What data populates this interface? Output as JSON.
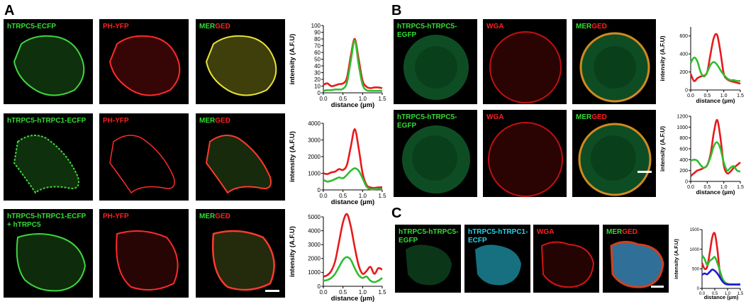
{
  "panels": {
    "A": {
      "letter": "A",
      "rows": [
        {
          "labels": {
            "green": "hTRPC5-ECFP",
            "red": "PH-YFP",
            "merged_a": "MER",
            "merged_b": "GED"
          },
          "chart": {
            "ylabel": "intensity (A.F.U)",
            "xlabel": "distance (µm)",
            "yticks": [
              "0",
              "10",
              "20",
              "30",
              "40",
              "50",
              "60",
              "70",
              "80",
              "90",
              "100"
            ],
            "xticks": [
              "0.0",
              "0.5",
              "1.0",
              "1.5"
            ]
          }
        },
        {
          "labels": {
            "green": "hTRPC5-hTRPC1-ECFP",
            "red": "PH-YFP",
            "merged_a": "MER",
            "merged_b": "GED"
          },
          "chart": {
            "ylabel": "intensity (A.F.U)",
            "xlabel": "distance (µm)",
            "yticks": [
              "0",
              "1000",
              "2000",
              "3000",
              "4000"
            ],
            "xticks": [
              "0.0",
              "0.5",
              "1.0",
              "1.5"
            ]
          }
        },
        {
          "labels": {
            "green": "hTRPC5-hTRPC1-ECFP\n+ hTRPC5",
            "red": "PH-YFP",
            "merged_a": "MER",
            "merged_b": "GED"
          },
          "chart": {
            "ylabel": "intensity (A.F.U)",
            "xlabel": "distance (µm)",
            "yticks": [
              "0",
              "1000",
              "2000",
              "3000",
              "4000",
              "5000"
            ],
            "xticks": [
              "0.0",
              "0.5",
              "1.0",
              "1.5"
            ]
          }
        }
      ]
    },
    "B": {
      "letter": "B",
      "rows": [
        {
          "labels": {
            "green": "hTRPC5-hTRPC5-\nEGFP",
            "red": "WGA",
            "merged_a": "MER",
            "merged_b": "GED"
          },
          "chart": {
            "ylabel": "intensity (A.F.U)",
            "xlabel": "distance (µm)",
            "yticks": [
              "0",
              "200",
              "400",
              "600"
            ],
            "xticks": [
              "0.0",
              "0.5",
              "1.0",
              "1.5"
            ]
          }
        },
        {
          "labels": {
            "green": "hTRPC5-hTRPC5-\nEGFP",
            "red": "WGA",
            "merged_a": "MER",
            "merged_b": "GED"
          },
          "chart": {
            "ylabel": "intensity (A.F.U)",
            "xlabel": "distance (µm)",
            "yticks": [
              "0",
              "200",
              "400",
              "600",
              "800",
              "1000",
              "1200"
            ],
            "xticks": [
              "0.0",
              "0.5",
              "1.0",
              "1.5"
            ]
          }
        }
      ]
    },
    "C": {
      "letter": "C",
      "labels": {
        "green": "hTRPC5-hTRPC5-\nEGFP",
        "cyan": "hTRPC5-hTRPC1-\nECFP",
        "red": "WGA",
        "merged_a": "MER",
        "merged_b": "GED"
      },
      "chart": {
        "ylabel": "intensity (A.F.U)",
        "xlabel": "distance (µm)",
        "yticks": [
          "0",
          "500",
          "1000",
          "1500"
        ],
        "xticks": [
          "0.0",
          "0.5",
          "1.0",
          "1.5"
        ]
      }
    }
  },
  "chart_data": [
    {
      "type": "line",
      "panel": "A-1",
      "ylim": [
        0,
        100
      ],
      "xlim": [
        0,
        1.5
      ],
      "x": [
        0,
        0.1,
        0.2,
        0.3,
        0.4,
        0.5,
        0.6,
        0.7,
        0.8,
        0.9,
        1.0,
        1.1,
        1.2,
        1.3,
        1.4,
        1.5
      ],
      "series": [
        {
          "color": "#e8191c",
          "values": [
            12,
            14,
            10,
            11,
            13,
            14,
            22,
            55,
            80,
            50,
            18,
            9,
            7,
            8,
            8,
            7
          ]
        },
        {
          "color": "#2ebd2e",
          "values": [
            3,
            4,
            4,
            5,
            5,
            6,
            15,
            48,
            78,
            42,
            12,
            4,
            3,
            3,
            3,
            3
          ]
        }
      ]
    },
    {
      "type": "line",
      "panel": "A-2",
      "ylim": [
        0,
        4000
      ],
      "xlim": [
        0,
        1.5
      ],
      "x": [
        0,
        0.1,
        0.2,
        0.3,
        0.4,
        0.5,
        0.6,
        0.7,
        0.8,
        0.9,
        1.0,
        1.1,
        1.2,
        1.3,
        1.4,
        1.5
      ],
      "series": [
        {
          "color": "#e8191c",
          "values": [
            1000,
            950,
            1050,
            1100,
            1250,
            1200,
            1500,
            2600,
            3650,
            2500,
            1000,
            300,
            150,
            120,
            150,
            160
          ]
        },
        {
          "color": "#2ebd2e",
          "values": [
            600,
            500,
            550,
            650,
            750,
            700,
            900,
            1150,
            1300,
            1150,
            700,
            200,
            50,
            50,
            60,
            50
          ]
        }
      ]
    },
    {
      "type": "line",
      "panel": "A-3",
      "ylim": [
        0,
        5000
      ],
      "xlim": [
        0,
        1.5
      ],
      "x": [
        0,
        0.1,
        0.2,
        0.3,
        0.4,
        0.5,
        0.6,
        0.7,
        0.8,
        0.9,
        1.0,
        1.1,
        1.2,
        1.3,
        1.4,
        1.5
      ],
      "series": [
        {
          "color": "#e8191c",
          "values": [
            700,
            800,
            1100,
            1800,
            3200,
            4600,
            5200,
            4300,
            2800,
            1500,
            900,
            1100,
            1400,
            900,
            1300,
            1200
          ]
        },
        {
          "color": "#2ebd2e",
          "values": [
            400,
            450,
            600,
            900,
            1400,
            1900,
            2100,
            1900,
            1300,
            800,
            600,
            700,
            400,
            300,
            400,
            600
          ]
        }
      ]
    },
    {
      "type": "line",
      "panel": "B-1",
      "ylim": [
        0,
        700
      ],
      "xlim": [
        0,
        1.5
      ],
      "x": [
        0,
        0.1,
        0.2,
        0.3,
        0.4,
        0.5,
        0.6,
        0.7,
        0.8,
        0.9,
        1.0,
        1.1,
        1.2,
        1.3,
        1.4,
        1.5
      ],
      "series": [
        {
          "color": "#e8191c",
          "values": [
            180,
            100,
            130,
            150,
            160,
            200,
            400,
            580,
            610,
            420,
            180,
            120,
            100,
            90,
            80,
            70
          ]
        },
        {
          "color": "#2ebd2e",
          "values": [
            300,
            360,
            320,
            200,
            150,
            200,
            280,
            310,
            280,
            220,
            170,
            130,
            110,
            110,
            100,
            100
          ]
        }
      ]
    },
    {
      "type": "line",
      "panel": "B-2",
      "ylim": [
        0,
        1200
      ],
      "xlim": [
        0,
        1.5
      ],
      "x": [
        0,
        0.1,
        0.2,
        0.3,
        0.4,
        0.5,
        0.6,
        0.7,
        0.8,
        0.9,
        1.0,
        1.1,
        1.2,
        1.3,
        1.4,
        1.5
      ],
      "series": [
        {
          "color": "#e8191c",
          "values": [
            100,
            150,
            200,
            220,
            250,
            300,
            500,
            900,
            1130,
            800,
            300,
            150,
            180,
            250,
            300,
            350
          ]
        },
        {
          "color": "#2ebd2e",
          "values": [
            380,
            400,
            380,
            300,
            250,
            300,
            450,
            650,
            720,
            600,
            350,
            200,
            250,
            280,
            200,
            180
          ]
        }
      ]
    },
    {
      "type": "line",
      "panel": "C",
      "ylim": [
        0,
        1500
      ],
      "xlim": [
        0,
        1.5
      ],
      "x": [
        0,
        0.1,
        0.2,
        0.3,
        0.4,
        0.5,
        0.6,
        0.7,
        0.8,
        0.9,
        1.0,
        1.1,
        1.2,
        1.3,
        1.4,
        1.5
      ],
      "series": [
        {
          "color": "#e8191c",
          "values": [
            650,
            500,
            550,
            900,
            1300,
            1400,
            1000,
            400,
            200,
            150,
            120,
            100,
            100,
            100,
            100,
            100
          ]
        },
        {
          "color": "#2ebd2e",
          "values": [
            850,
            750,
            600,
            700,
            750,
            800,
            650,
            450,
            250,
            150,
            120,
            100,
            100,
            100,
            100,
            100
          ]
        },
        {
          "color": "#1a1adc",
          "values": [
            350,
            380,
            360,
            420,
            480,
            450,
            380,
            280,
            180,
            120,
            100,
            100,
            100,
            100,
            100,
            100
          ]
        }
      ]
    }
  ]
}
